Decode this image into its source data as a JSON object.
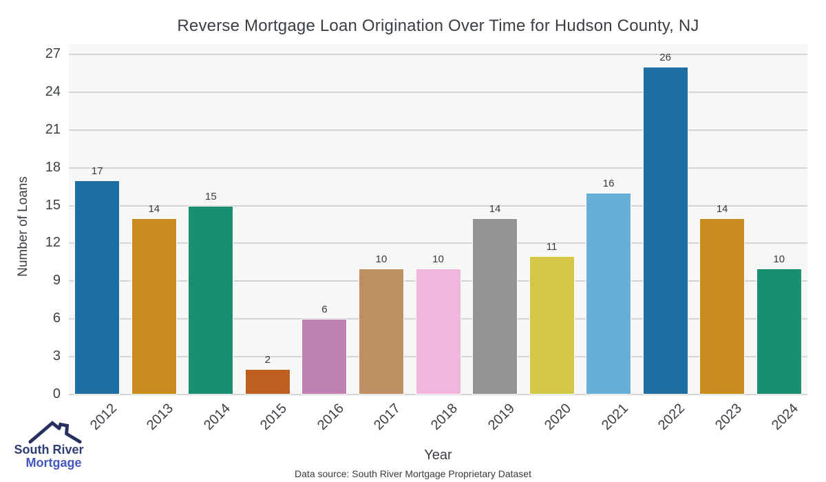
{
  "title": "Reverse Mortgage Loan Origination Over Time for Hudson County, NJ",
  "chart_data": {
    "type": "bar",
    "title": "Reverse Mortgage Loan Origination Over Time for Hudson County, NJ",
    "categories": [
      "2012",
      "2013",
      "2014",
      "2015",
      "2016",
      "2017",
      "2018",
      "2019",
      "2020",
      "2021",
      "2022",
      "2023",
      "2024"
    ],
    "values": [
      17,
      14,
      15,
      2,
      6,
      10,
      10,
      14,
      11,
      16,
      26,
      14,
      10
    ],
    "bar_colors": [
      "#1d6fa3",
      "#ca8c20",
      "#188f6e",
      "#bf5f1f",
      "#bf80b2",
      "#bd8f63",
      "#f2b5dc",
      "#949494",
      "#d2c845",
      "#66afd9",
      "#1d6fa3",
      "#ca8c20",
      "#188f6e"
    ],
    "xlabel": "Year",
    "ylabel": "Number of Loans",
    "ylim": [
      0,
      27
    ],
    "yticks": [
      0,
      3,
      6,
      9,
      12,
      15,
      18,
      21,
      24,
      27
    ],
    "grid": true,
    "legend": "none",
    "bar_value_labels": true
  },
  "footer": {
    "data_source": "Data source: South River Mortgage Proprietary Dataset"
  },
  "logo": {
    "icon": "house-roof-icon",
    "line1": "South River",
    "line2": "Mortgage",
    "color_primary": "#2e3d72",
    "color_secondary": "#4457bb"
  },
  "colors": {
    "plot_background": "#f7f7f7",
    "gridline": "#d5d5d5",
    "text": "#3a3f45",
    "page_background": "#ffffff"
  }
}
